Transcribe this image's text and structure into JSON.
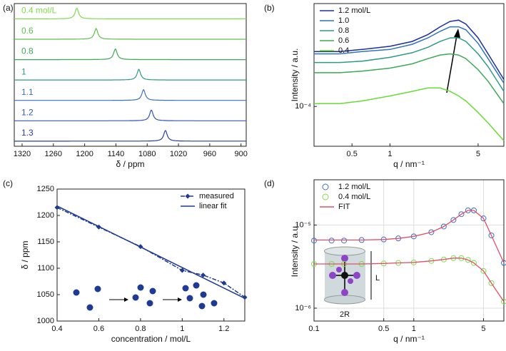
{
  "chart_data": [
    {
      "type": "spectra",
      "panel_label": "(a)",
      "xlabel": "δ / ppm",
      "xlim": [
        1335,
        890
      ],
      "xticks": [
        1320,
        1260,
        1200,
        1140,
        1080,
        1020,
        960,
        900
      ],
      "series": [
        {
          "name": "0.4 mol/L",
          "color": "#7ddc4a",
          "peak": 1215
        },
        {
          "name": "0.6",
          "color": "#5cc14a",
          "peak": 1178
        },
        {
          "name": "0.8",
          "color": "#3fa654",
          "peak": 1141
        },
        {
          "name": "1",
          "color": "#2e9a7f",
          "peak": 1096
        },
        {
          "name": "1.1",
          "color": "#3a6fc4",
          "peak": 1087
        },
        {
          "name": "1.2",
          "color": "#3355bb",
          "peak": 1072
        },
        {
          "name": "1.3",
          "color": "#2a3fa0",
          "peak": 1045
        }
      ]
    },
    {
      "type": "line",
      "panel_label": "(b)",
      "xlabel": "q / nm⁻¹",
      "ylabel": "Intensity / a.u.",
      "xlog": true,
      "ylog": true,
      "xlim": [
        0.25,
        8
      ],
      "ylim": [
        5e-05,
        0.0006
      ],
      "xticks": [
        0.5,
        1,
        5
      ],
      "yticks": [
        {
          "value": 0.0001,
          "label": "10⁻⁴"
        }
      ],
      "legend": "top-left",
      "x": [
        0.25,
        0.4,
        0.6,
        1,
        1.5,
        2,
        2.5,
        3,
        3.5,
        4,
        5,
        6,
        8
      ],
      "series": [
        {
          "name": "1.2 mol/L",
          "color": "#1d2fa0",
          "values": [
            0.00026,
            0.00026,
            0.00027,
            0.000285,
            0.00031,
            0.00035,
            0.0004,
            0.00044,
            0.00045,
            0.00042,
            0.00033,
            0.00025,
            0.00016
          ]
        },
        {
          "name": "1.0",
          "color": "#2f74c0",
          "values": [
            0.00025,
            0.00025,
            0.00026,
            0.00027,
            0.000295,
            0.00033,
            0.00037,
            0.0004,
            0.0004,
            0.00038,
            0.0003,
            0.00023,
            0.00015
          ]
        },
        {
          "name": "0.8",
          "color": "#2e9a86",
          "values": [
            0.000215,
            0.000215,
            0.00022,
            0.000235,
            0.000255,
            0.00028,
            0.00031,
            0.00033,
            0.00033,
            0.00031,
            0.00025,
            0.0002,
            0.00013
          ]
        },
        {
          "name": "0.6",
          "color": "#3aaa55",
          "values": [
            0.00018,
            0.00018,
            0.000185,
            0.000195,
            0.00021,
            0.00023,
            0.000245,
            0.00025,
            0.000245,
            0.00023,
            0.00019,
            0.000155,
            0.000105
          ]
        },
        {
          "name": "0.4",
          "color": "#66dd33",
          "values": [
            0.000105,
            0.000105,
            0.00011,
            0.00012,
            0.00013,
            0.000138,
            0.000138,
            0.00013,
            0.00012,
            0.00011,
            9e-05,
            7.5e-05,
            5.5e-05
          ]
        }
      ]
    },
    {
      "type": "line",
      "panel_label": "(c)",
      "xlabel": "concentration / mol/L",
      "ylabel": "δ / ppm",
      "xlim": [
        0.4,
        1.3
      ],
      "ylim": [
        1000,
        1250
      ],
      "xticks": [
        0.4,
        0.6,
        0.8,
        1.0,
        1.2
      ],
      "yticks": [
        1000,
        1050,
        1100,
        1150,
        1200,
        1250
      ],
      "legend": "top-right",
      "series": [
        {
          "name": "measured",
          "color": "#1f3a93",
          "dash": "6 2 2 2",
          "marker": "diamond",
          "x": [
            0.4,
            0.6,
            0.8,
            1.0,
            1.1,
            1.2,
            1.3
          ],
          "values": [
            1215,
            1178,
            1141,
            1096,
            1087,
            1072,
            1045
          ]
        },
        {
          "name": "linear fit",
          "color": "#1f3a93",
          "x": [
            0.4,
            1.3
          ],
          "values": [
            1218,
            1043
          ]
        }
      ]
    },
    {
      "type": "scatter",
      "panel_label": "(d)",
      "xlabel": "q / nm⁻¹",
      "ylabel": "Intensity / a.u.",
      "xlog": true,
      "ylog": true,
      "xlim": [
        0.1,
        8
      ],
      "ylim": [
        7e-07,
        3.5e-05
      ],
      "grid": true,
      "xticks": [
        0.1,
        0.5,
        1,
        5
      ],
      "yticks": [
        {
          "value": 1e-06,
          "label": "10⁻⁶"
        },
        {
          "value": 1e-05,
          "label": "10⁻⁵"
        }
      ],
      "legend": "top-left",
      "fit_label": "FIT",
      "fit_color": "#e0506a",
      "annotations": [
        "L",
        "2R"
      ],
      "x": [
        0.1,
        0.15,
        0.2,
        0.3,
        0.5,
        0.7,
        1,
        1.5,
        2,
        2.5,
        3,
        3.5,
        4,
        5,
        6,
        8
      ],
      "series": [
        {
          "name": "1.2 mol/L",
          "color": "#3a6fc4",
          "values": [
            6.5e-06,
            6.5e-06,
            6.5e-06,
            6.6e-06,
            6.7e-06,
            6.9e-06,
            7.3e-06,
            8.2e-06,
            9.6e-06,
            1.15e-05,
            1.35e-05,
            1.5e-05,
            1.5e-05,
            1.2e-05,
            7.5e-06,
            3.5e-06
          ],
          "fit": [
            6.6e-06,
            6.6e-06,
            6.6e-06,
            6.6e-06,
            6.7e-06,
            6.9e-06,
            7.3e-06,
            8.2e-06,
            9.6e-06,
            1.15e-05,
            1.35e-05,
            1.5e-05,
            1.5e-05,
            1.2e-05,
            7.5e-06,
            3.5e-06
          ]
        },
        {
          "name": "0.4 mol/L",
          "color": "#7ddc4a",
          "values": [
            3.4e-06,
            3.4e-06,
            3.4e-06,
            3.4e-06,
            3.45e-06,
            3.5e-06,
            3.55e-06,
            3.7e-06,
            3.85e-06,
            4e-06,
            4e-06,
            3.8e-06,
            3.5e-06,
            2.8e-06,
            2e-06,
            1.2e-06
          ],
          "fit": [
            3.4e-06,
            3.4e-06,
            3.4e-06,
            3.4e-06,
            3.45e-06,
            3.5e-06,
            3.55e-06,
            3.7e-06,
            3.85e-06,
            4e-06,
            4e-06,
            3.8e-06,
            3.5e-06,
            2.8e-06,
            2e-06,
            1.2e-06
          ]
        }
      ]
    }
  ]
}
